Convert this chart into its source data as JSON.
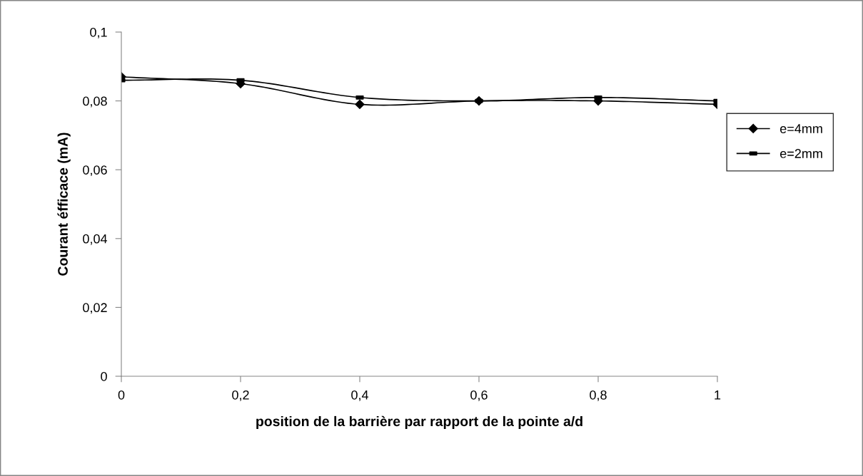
{
  "chart_data": {
    "type": "line",
    "xlabel": "position de la barrière par rapport de la pointe a/d",
    "ylabel": "Courant éfficace (mA)",
    "x": [
      0,
      0.2,
      0.4,
      0.6,
      0.8,
      1
    ],
    "series": [
      {
        "name": "e=4mm",
        "color": "#000000",
        "marker": "diamond",
        "values": [
          0.087,
          0.085,
          0.079,
          0.08,
          0.08,
          0.079
        ]
      },
      {
        "name": "e=2mm",
        "color": "#000000",
        "marker": "square",
        "values": [
          0.086,
          0.086,
          0.081,
          0.08,
          0.081,
          0.08
        ]
      }
    ],
    "xlim": [
      0,
      1
    ],
    "xticks": [
      {
        "value": 0,
        "label": "0"
      },
      {
        "value": 0.2,
        "label": "0,2"
      },
      {
        "value": 0.4,
        "label": "0,4"
      },
      {
        "value": 0.6,
        "label": "0,6"
      },
      {
        "value": 0.8,
        "label": "0,8"
      },
      {
        "value": 1,
        "label": "1"
      }
    ],
    "ylim": [
      0,
      0.1
    ],
    "yticks": [
      {
        "value": 0,
        "label": "0"
      },
      {
        "value": 0.02,
        "label": "0,02"
      },
      {
        "value": 0.04,
        "label": "0,04"
      },
      {
        "value": 0.06,
        "label": "0,06"
      },
      {
        "value": 0.08,
        "label": "0,08"
      },
      {
        "value": 0.1,
        "label": "0,1"
      }
    ],
    "grid": false,
    "legend": "right",
    "line_style": "solid"
  }
}
